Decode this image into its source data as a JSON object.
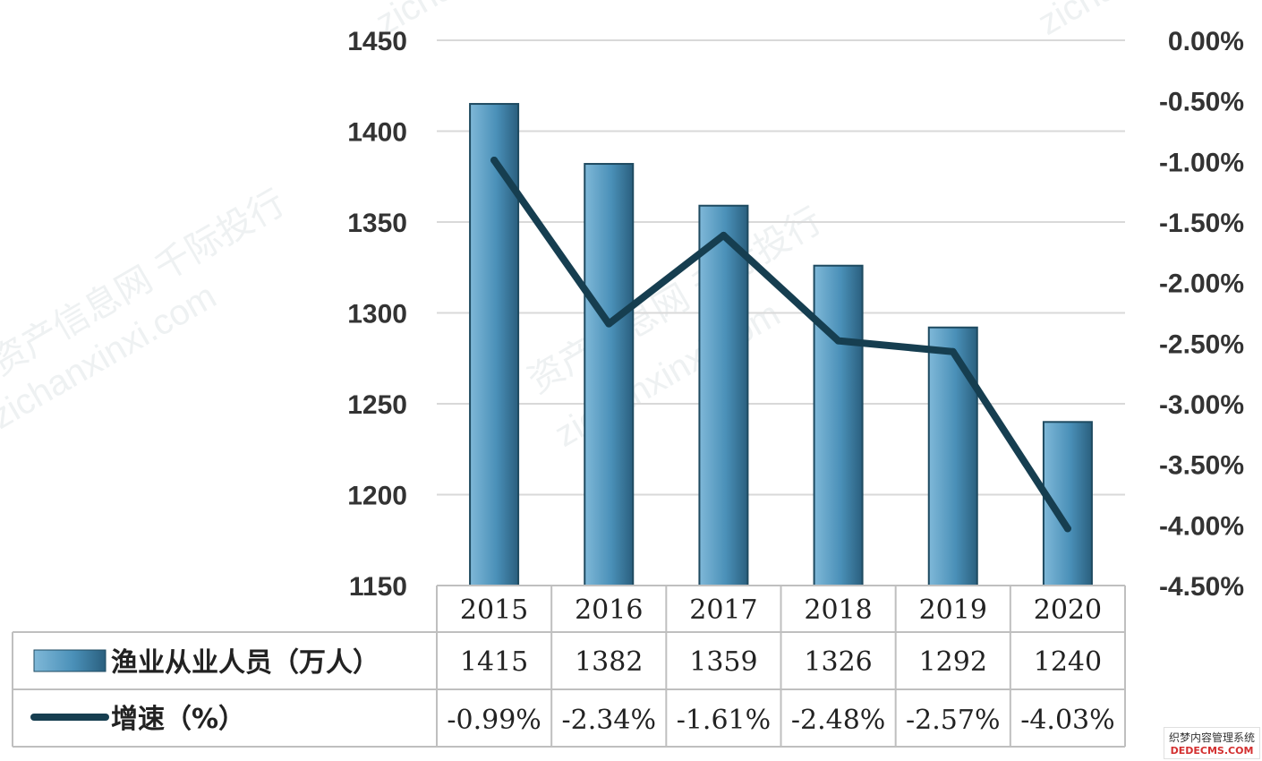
{
  "chart_data": {
    "type": "bar",
    "categories": [
      "2015",
      "2016",
      "2017",
      "2018",
      "2019",
      "2020"
    ],
    "series": [
      {
        "name": "渔业从业人员（万人）",
        "type": "bar",
        "axis": "left",
        "values": [
          1415,
          1382,
          1359,
          1326,
          1292,
          1240
        ],
        "value_labels": [
          "1415",
          "1382",
          "1359",
          "1326",
          "1292",
          "1240"
        ],
        "color": "#4a90b8"
      },
      {
        "name": "增速（%）",
        "type": "line",
        "axis": "right",
        "values": [
          -0.99,
          -2.34,
          -1.61,
          -2.48,
          -2.57,
          -4.03
        ],
        "value_labels": [
          "-0.99%",
          "-2.34%",
          "-1.61%",
          "-2.48%",
          "-2.57%",
          "-4.03%"
        ],
        "color": "#163e50"
      }
    ],
    "y_left": {
      "range": [
        1150,
        1450
      ],
      "ticks": [
        1450,
        1400,
        1350,
        1300,
        1250,
        1200,
        1150
      ],
      "tick_labels": [
        "1450",
        "1400",
        "1350",
        "1300",
        "1250",
        "1200",
        "1150"
      ]
    },
    "y_right": {
      "range": [
        -4.5,
        0
      ],
      "ticks": [
        0,
        -0.5,
        -1,
        -1.5,
        -2,
        -2.5,
        -3,
        -3.5,
        -4,
        -4.5
      ],
      "tick_labels": [
        "0.00%",
        "-0.50%",
        "-1.00%",
        "-1.50%",
        "-2.00%",
        "-2.50%",
        "-3.00%",
        "-3.50%",
        "-4.00%",
        "-4.50%"
      ]
    },
    "grid": true,
    "legend": "data-table-below"
  },
  "watermarks": [
    "zichanxinxi.com",
    "资产信息网 千际投行"
  ],
  "footer_badge": {
    "line1": "织梦内容管理系统",
    "line2": "DEDECMS.COM"
  }
}
